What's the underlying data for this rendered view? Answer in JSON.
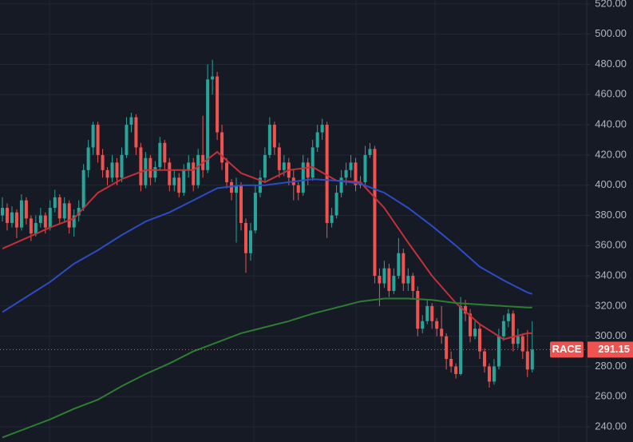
{
  "chart_data": {
    "type": "candlestick",
    "symbol": "RACE",
    "last_price": 291.15,
    "up_color": "#26a69a",
    "down_color": "#ef5350",
    "grid": true,
    "ylim": [
      230,
      522.6
    ],
    "yticks": [
      {
        "value": 240,
        "label": "240.00"
      },
      {
        "value": 260,
        "label": "260.00"
      },
      {
        "value": 280,
        "label": "280.00"
      },
      {
        "value": 300,
        "label": "300.00"
      },
      {
        "value": 320,
        "label": "320.00"
      },
      {
        "value": 340,
        "label": "340.00"
      },
      {
        "value": 360,
        "label": "360.00"
      },
      {
        "value": 380,
        "label": "380.00"
      },
      {
        "value": 400,
        "label": "400.00"
      },
      {
        "value": 420,
        "label": "420.00"
      },
      {
        "value": 440,
        "label": "440.00"
      },
      {
        "value": 460,
        "label": "460.00"
      },
      {
        "value": 480,
        "label": "480.00"
      },
      {
        "value": 500,
        "label": "500.00"
      },
      {
        "value": 520,
        "label": "520.00"
      }
    ],
    "ohlc": [
      [
        380,
        392,
        376,
        385
      ],
      [
        385,
        388,
        370,
        375
      ],
      [
        375,
        386,
        372,
        382
      ],
      [
        382,
        384,
        365,
        372
      ],
      [
        372,
        394,
        370,
        390
      ],
      [
        390,
        392,
        374,
        378
      ],
      [
        378,
        380,
        363,
        368
      ],
      [
        368,
        380,
        366,
        375
      ],
      [
        375,
        385,
        372,
        380
      ],
      [
        380,
        382,
        368,
        372
      ],
      [
        372,
        390,
        370,
        385
      ],
      [
        385,
        397,
        382,
        392
      ],
      [
        392,
        394,
        374,
        378
      ],
      [
        378,
        392,
        375,
        388
      ],
      [
        388,
        390,
        368,
        372
      ],
      [
        372,
        384,
        366,
        380
      ],
      [
        380,
        390,
        376,
        385
      ],
      [
        385,
        414,
        383,
        410
      ],
      [
        410,
        430,
        405,
        425
      ],
      [
        425,
        442,
        420,
        440
      ],
      [
        440,
        442,
        415,
        420
      ],
      [
        420,
        424,
        405,
        410
      ],
      [
        410,
        412,
        400,
        405
      ],
      [
        405,
        420,
        402,
        415
      ],
      [
        415,
        418,
        400,
        405
      ],
      [
        405,
        425,
        402,
        420
      ],
      [
        420,
        445,
        418,
        440
      ],
      [
        440,
        448,
        435,
        445
      ],
      [
        445,
        447,
        420,
        425
      ],
      [
        425,
        428,
        396,
        400
      ],
      [
        400,
        422,
        398,
        418
      ],
      [
        418,
        420,
        400,
        405
      ],
      [
        405,
        416,
        402,
        412
      ],
      [
        412,
        432,
        410,
        428
      ],
      [
        428,
        430,
        410,
        415
      ],
      [
        415,
        418,
        396,
        400
      ],
      [
        400,
        410,
        396,
        405
      ],
      [
        405,
        408,
        392,
        395
      ],
      [
        395,
        414,
        393,
        410
      ],
      [
        410,
        420,
        405,
        415
      ],
      [
        415,
        418,
        396,
        400
      ],
      [
        400,
        424,
        398,
        420
      ],
      [
        420,
        446,
        405,
        410
      ],
      [
        410,
        480,
        408,
        470
      ],
      [
        470,
        483,
        460,
        472
      ],
      [
        472,
        475,
        430,
        435
      ],
      [
        435,
        440,
        410,
        415
      ],
      [
        415,
        418,
        398,
        402
      ],
      [
        402,
        404,
        390,
        395
      ],
      [
        395,
        405,
        362,
        400
      ],
      [
        400,
        402,
        370,
        375
      ],
      [
        375,
        378,
        342,
        355
      ],
      [
        355,
        375,
        350,
        370
      ],
      [
        370,
        400,
        368,
        395
      ],
      [
        395,
        410,
        392,
        405
      ],
      [
        405,
        425,
        402,
        420
      ],
      [
        420,
        445,
        418,
        440
      ],
      [
        440,
        442,
        420,
        425
      ],
      [
        425,
        428,
        405,
        410
      ],
      [
        410,
        420,
        406,
        415
      ],
      [
        415,
        418,
        400,
        405
      ],
      [
        405,
        410,
        390,
        400
      ],
      [
        400,
        402,
        390,
        395
      ],
      [
        395,
        420,
        393,
        415
      ],
      [
        415,
        418,
        400,
        405
      ],
      [
        405,
        430,
        403,
        425
      ],
      [
        425,
        440,
        422,
        435
      ],
      [
        435,
        444,
        430,
        440
      ],
      [
        440,
        442,
        365,
        375
      ],
      [
        375,
        385,
        372,
        380
      ],
      [
        380,
        400,
        378,
        395
      ],
      [
        395,
        410,
        392,
        405
      ],
      [
        405,
        415,
        400,
        410
      ],
      [
        410,
        420,
        405,
        415
      ],
      [
        415,
        418,
        396,
        400
      ],
      [
        400,
        406,
        398,
        402
      ],
      [
        402,
        426,
        400,
        420
      ],
      [
        420,
        428,
        418,
        424
      ],
      [
        424,
        426,
        335,
        340
      ],
      [
        340,
        345,
        320,
        335
      ],
      [
        335,
        350,
        332,
        345
      ],
      [
        345,
        348,
        326,
        330
      ],
      [
        330,
        345,
        328,
        340
      ],
      [
        340,
        365,
        338,
        355
      ],
      [
        355,
        358,
        330,
        335
      ],
      [
        335,
        345,
        330,
        340
      ],
      [
        340,
        342,
        325,
        330
      ],
      [
        330,
        333,
        300,
        305
      ],
      [
        305,
        314,
        302,
        310
      ],
      [
        310,
        324,
        308,
        320
      ],
      [
        320,
        322,
        305,
        310
      ],
      [
        310,
        312,
        300,
        305
      ],
      [
        305,
        320,
        295,
        300
      ],
      [
        300,
        302,
        278,
        285
      ],
      [
        285,
        290,
        276,
        280
      ],
      [
        280,
        282,
        272,
        275
      ],
      [
        275,
        326,
        274,
        320
      ],
      [
        320,
        324,
        310,
        315
      ],
      [
        315,
        318,
        296,
        300
      ],
      [
        300,
        310,
        298,
        305
      ],
      [
        305,
        308,
        285,
        290
      ],
      [
        290,
        292,
        276,
        280
      ],
      [
        280,
        282,
        266,
        270
      ],
      [
        270,
        285,
        268,
        280
      ],
      [
        280,
        305,
        278,
        300
      ],
      [
        300,
        314,
        297,
        310
      ],
      [
        310,
        318,
        306,
        315
      ],
      [
        315,
        317,
        290,
        295
      ],
      [
        295,
        305,
        292,
        300
      ],
      [
        300,
        302,
        285,
        290
      ],
      [
        290,
        304,
        273,
        278
      ],
      [
        278,
        310,
        276,
        291.15
      ]
    ],
    "series": [
      {
        "color": "#c2313a",
        "x": [
          0,
          5,
          10,
          15,
          20,
          25,
          30,
          35,
          40,
          45,
          50,
          55,
          60,
          65,
          70,
          75,
          80,
          85,
          90,
          95,
          100,
          105,
          110,
          111
        ],
        "values": [
          358,
          365,
          372,
          378,
          395,
          404,
          410,
          410,
          410,
          422,
          408,
          402,
          410,
          412,
          403,
          402,
          385,
          362,
          340,
          322,
          308,
          298,
          302,
          302
        ]
      },
      {
        "color": "#2c4cc4",
        "x": [
          0,
          5,
          10,
          15,
          20,
          25,
          30,
          35,
          40,
          45,
          50,
          55,
          60,
          65,
          70,
          75,
          80,
          85,
          90,
          95,
          100,
          105,
          110,
          111
        ],
        "values": [
          316,
          326,
          336,
          348,
          357,
          367,
          376,
          382,
          390,
          398,
          400,
          400,
          402,
          404,
          403,
          401,
          395,
          385,
          373,
          360,
          346,
          337,
          329,
          328
        ]
      },
      {
        "color": "#2e7d32",
        "x": [
          0,
          5,
          10,
          15,
          20,
          25,
          30,
          35,
          40,
          45,
          50,
          55,
          60,
          65,
          70,
          75,
          80,
          85,
          90,
          95,
          100,
          105,
          110,
          111
        ],
        "values": [
          233,
          239,
          245,
          252,
          258,
          267,
          275,
          282,
          290,
          296,
          302,
          306,
          310,
          315,
          319,
          323,
          325,
          325,
          324,
          322,
          321,
          320,
          319,
          319
        ]
      }
    ]
  }
}
